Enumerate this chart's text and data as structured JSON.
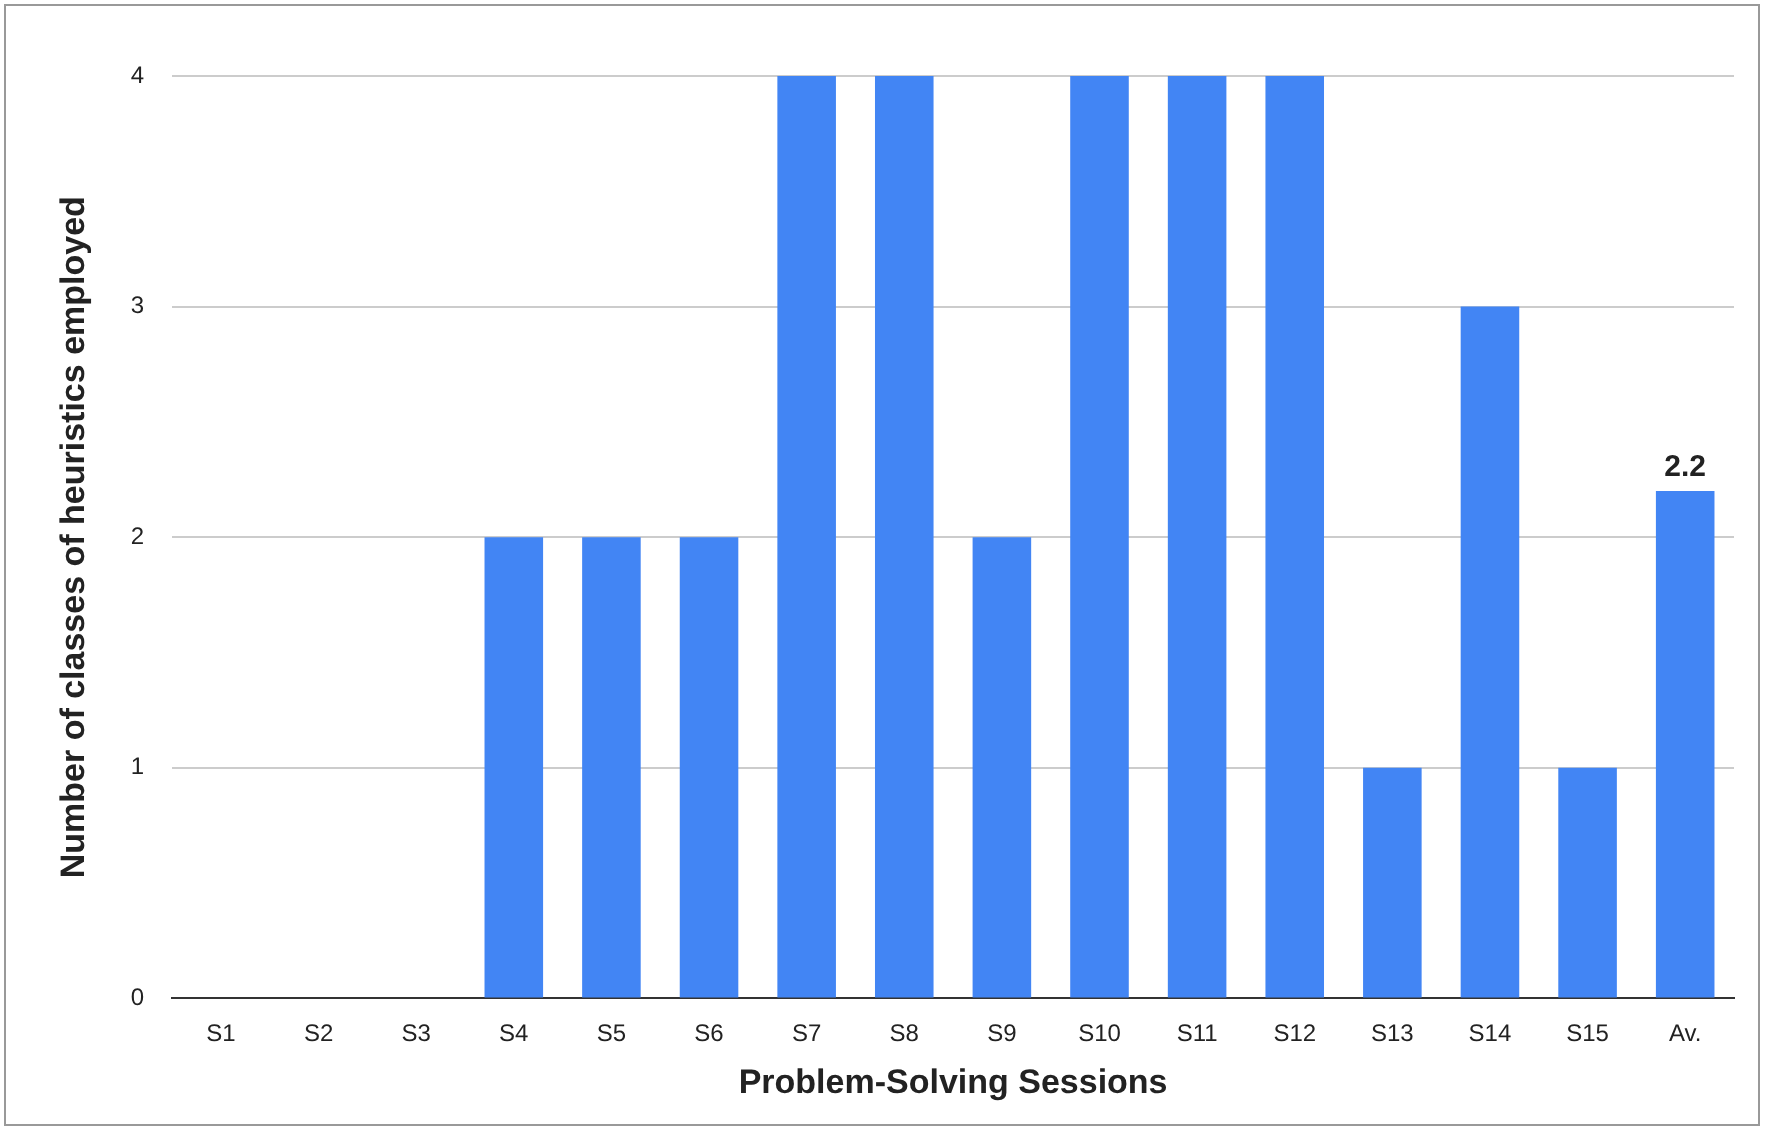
{
  "chart_data": {
    "type": "bar",
    "xlabel": "Problem-Solving Sessions",
    "ylabel": "Number of classes of heuristics employed",
    "categories": [
      "S1",
      "S2",
      "S3",
      "S4",
      "S5",
      "S6",
      "S7",
      "S8",
      "S9",
      "S10",
      "S11",
      "S12",
      "S13",
      "S14",
      "S15",
      "Av."
    ],
    "values": [
      0,
      0,
      0,
      2,
      2,
      2,
      4,
      4,
      2,
      4,
      4,
      4,
      1,
      3,
      1,
      2.2
    ],
    "value_labels": [
      null,
      null,
      null,
      null,
      null,
      null,
      null,
      null,
      null,
      null,
      null,
      null,
      null,
      null,
      null,
      "2.2"
    ],
    "color": "#4285f4",
    "ylim": [
      0,
      4
    ],
    "yticks": [
      0,
      1,
      2,
      3,
      4
    ],
    "grid": "y",
    "legend": false
  }
}
